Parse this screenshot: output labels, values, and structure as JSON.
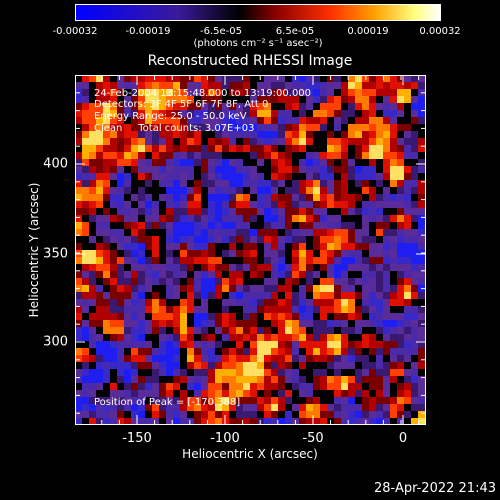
{
  "colorbar": {
    "ticks": [
      "-0.00032",
      "-0.00019",
      "-6.5e-05",
      "6.5e-05",
      "0.00019",
      "0.00032"
    ],
    "units": "(photons cm⁻² s⁻¹ asec⁻²)",
    "colors": [
      "#0000ff",
      "#3a1a9a",
      "#000000",
      "#8b0000",
      "#ff3000",
      "#ffa000",
      "#ffff80",
      "#ffffff"
    ]
  },
  "title": "Reconstructed RHESSI Image",
  "info": {
    "line1": "24-Feb-2004 13:15:48.000 to 13:19:00.000",
    "line2": "Detectors: 3F 4F 5F 6F 7F 8F, Att 0",
    "line3": "Energy Range: 25.0 - 50.0 keV",
    "line4": "Clean     Total counts: 3.07E+03",
    "peak": "Position of Peak = [-170,388]"
  },
  "x_axis": {
    "label": "Heliocentric X (arcsec)",
    "ticks": [
      "-150",
      "-100",
      "-50",
      "0"
    ]
  },
  "y_axis": {
    "label": "Heliocentric Y (arcsec)",
    "ticks": [
      "400",
      "350",
      "300"
    ]
  },
  "timestamp": "28-Apr-2022 21:43",
  "palette": {
    "negative": [
      "#1e1ef0",
      "#3828c8",
      "#4a2aa8",
      "#5a2c9a",
      "#3a1a70"
    ],
    "positive": [
      "#7a0000",
      "#b00000",
      "#e01000",
      "#ff4000",
      "#ff7a00",
      "#ffb000",
      "#ffe060"
    ]
  }
}
